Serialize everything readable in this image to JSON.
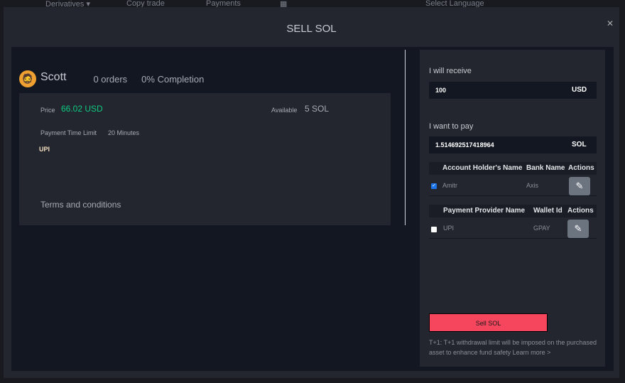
{
  "topnav": {
    "derivatives": "Derivatives ▾",
    "copy_trade": "Copy trade",
    "payments": "Payments",
    "language": "Select Language"
  },
  "modal": {
    "title": "SELL SOL",
    "close_icon": "close-icon"
  },
  "seller": {
    "name": "Scott",
    "orders": "0 orders",
    "completion": "0% Completion"
  },
  "offer": {
    "price_label": "Price",
    "price": "66.02 USD",
    "available_label": "Available",
    "available": "5 SOL",
    "time_label": "Payment Time Limit",
    "time": "20 Minutes",
    "method": "UPI",
    "terms": "Terms and conditions"
  },
  "form": {
    "receive_label": "I will receive",
    "receive_value": "100",
    "receive_currency": "USD",
    "pay_label": "I want to pay",
    "pay_value": "1.514692517418964",
    "pay_currency": "SOL"
  },
  "bank_table": {
    "headers": [
      "Account Holder's Name",
      "Bank Name",
      "Actions"
    ],
    "rows": [
      {
        "name": "Amitr",
        "bank": "Axis",
        "checked": true
      }
    ]
  },
  "wallet_table": {
    "headers": [
      "Payment Provider Name",
      "Wallet Id",
      "Actions"
    ],
    "rows": [
      {
        "name": "UPI",
        "wallet": "GPAY",
        "checked": false
      }
    ]
  },
  "sell_button": "Sell SOL",
  "note": "T+1: T+1 withdrawal limit will be imposed on the purchased asset to enhance fund safety Learn more >",
  "colors": {
    "accent_green": "#0ecb81",
    "sell_red": "#f6465d",
    "checkbox_blue": "#1a73e8"
  }
}
